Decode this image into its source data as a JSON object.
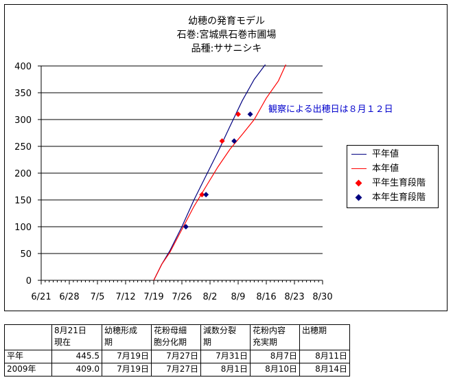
{
  "chart_data": {
    "type": "line",
    "title_lines": [
      "幼穂の発育モデル",
      "石巻:宮城県石巻市圃場",
      "品種:ササニシキ"
    ],
    "x_tick_labels": [
      "6/21",
      "6/28",
      "7/5",
      "7/12",
      "7/19",
      "7/26",
      "8/2",
      "8/9",
      "8/16",
      "8/23",
      "8/30"
    ],
    "x_range": [
      "6/21",
      "8/30"
    ],
    "ylim": [
      0,
      400
    ],
    "y_ticks": [
      0,
      50,
      100,
      150,
      200,
      250,
      300,
      350,
      400
    ],
    "grid": "horizontal",
    "legend_position": "right",
    "series": [
      {
        "name": "平年値",
        "kind": "line",
        "color": "#000080",
        "points": [
          [
            "7/19",
            0
          ],
          [
            "7/21",
            30
          ],
          [
            "7/23",
            55
          ],
          [
            "7/26",
            100
          ],
          [
            "7/29",
            150
          ],
          [
            "8/1",
            195
          ],
          [
            "8/4",
            240
          ],
          [
            "8/7",
            288
          ],
          [
            "8/10",
            335
          ],
          [
            "8/13",
            375
          ],
          [
            "8/16",
            405
          ]
        ]
      },
      {
        "name": "本年値",
        "kind": "line",
        "color": "#ff0000",
        "points": [
          [
            "7/19",
            0
          ],
          [
            "7/21",
            30
          ],
          [
            "7/23",
            52
          ],
          [
            "7/26",
            95
          ],
          [
            "7/29",
            138
          ],
          [
            "8/1",
            175
          ],
          [
            "8/4",
            212
          ],
          [
            "8/7",
            245
          ],
          [
            "8/10",
            272
          ],
          [
            "8/13",
            300
          ],
          [
            "8/16",
            340
          ],
          [
            "8/19",
            372
          ],
          [
            "8/21",
            405
          ]
        ]
      },
      {
        "name": "平年生育段階",
        "kind": "marker",
        "color": "#ff0000",
        "points": [
          [
            "7/31",
            160
          ],
          [
            "8/5",
            260
          ],
          [
            "8/9",
            310
          ]
        ]
      },
      {
        "name": "本年生育段階",
        "kind": "marker",
        "color": "#000080",
        "points": [
          [
            "7/27",
            100
          ],
          [
            "8/1",
            160
          ],
          [
            "8/8",
            260
          ],
          [
            "8/12",
            310
          ]
        ]
      }
    ],
    "annotation": "観察による出穂日は８月１２日"
  },
  "table": {
    "headers": [
      "",
      "8月21日\n現在",
      "幼穂形成\n期",
      "花粉母細\n胞分化期",
      "減数分裂\n期",
      "花粉内容\n充実期",
      "出穂期"
    ],
    "rows": [
      [
        "平年",
        "445.5",
        "7月19日",
        "7月27日",
        "7月31日",
        "8月7日",
        "8月11日"
      ],
      [
        "2009年",
        "409.0",
        "7月19日",
        "7月27日",
        "8月1日",
        "8月10日",
        "8月14日"
      ]
    ]
  }
}
